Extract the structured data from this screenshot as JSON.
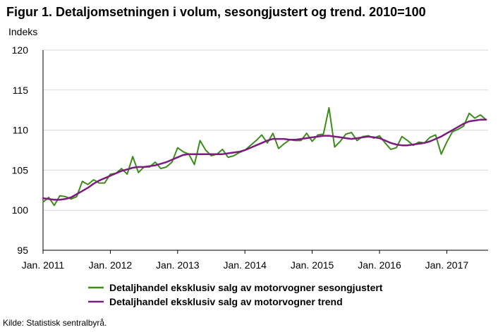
{
  "title": "Figur 1. Detaljomsetningen i volum, sesongjustert og trend. 2010=100",
  "source": "Kilde: Statistisk sentralbyrå.",
  "chart_data": {
    "type": "line",
    "title": "Figur 1. Detaljomsetningen i volum, sesongjustert og trend. 2010=100",
    "ylabel": "Indeks",
    "xlabel": "",
    "ylim": [
      95,
      120
    ],
    "yticks": [
      95,
      100,
      105,
      110,
      115,
      120
    ],
    "xticks": [
      "Jan. 2011",
      "Jan. 2012",
      "Jan. 2013",
      "Jan. 2014",
      "Jan. 2015",
      "Jan. 2016",
      "Jan. 2017"
    ],
    "grid": "horizontal",
    "legend_position": "bottom",
    "x_start": "2011-01",
    "x_frequency": "monthly",
    "series": [
      {
        "name": "Detaljhandel eksklusiv salg av motorvogner sesongjustert",
        "color": "#3c8c1c",
        "values": [
          101.0,
          101.6,
          100.6,
          101.8,
          101.7,
          101.4,
          101.7,
          103.6,
          103.2,
          103.8,
          103.4,
          103.4,
          104.5,
          104.6,
          105.2,
          104.5,
          106.7,
          104.7,
          105.4,
          105.4,
          106.0,
          105.2,
          105.4,
          106.0,
          107.8,
          107.3,
          107.0,
          105.7,
          108.7,
          107.5,
          106.8,
          107.0,
          107.6,
          106.6,
          106.8,
          107.2,
          107.5,
          108.1,
          108.7,
          109.4,
          108.4,
          109.6,
          107.7,
          108.3,
          108.8,
          108.7,
          108.7,
          109.6,
          108.6,
          109.4,
          109.5,
          112.8,
          107.9,
          108.6,
          109.5,
          109.7,
          108.7,
          109.2,
          109.3,
          109.0,
          109.3,
          108.4,
          107.6,
          107.8,
          109.2,
          108.7,
          108.1,
          108.5,
          108.4,
          109.1,
          109.4,
          107.0,
          108.5,
          109.8,
          110.1,
          110.5,
          112.1,
          111.5,
          111.9,
          111.3
        ]
      },
      {
        "name": "Detaljhandel eksklusiv salg av motorvogner trend",
        "color": "#7b1c7e",
        "values": [
          101.5,
          101.4,
          101.3,
          101.3,
          101.4,
          101.6,
          102.0,
          102.4,
          102.8,
          103.3,
          103.7,
          104.0,
          104.3,
          104.6,
          104.9,
          105.1,
          105.3,
          105.4,
          105.4,
          105.5,
          105.6,
          105.8,
          106.0,
          106.3,
          106.6,
          106.9,
          107.0,
          107.0,
          107.0,
          107.0,
          107.0,
          107.0,
          107.0,
          107.1,
          107.2,
          107.3,
          107.5,
          107.8,
          108.1,
          108.4,
          108.7,
          108.9,
          108.9,
          108.9,
          108.8,
          108.8,
          108.9,
          109.0,
          109.1,
          109.2,
          109.3,
          109.3,
          109.2,
          109.1,
          109.0,
          108.9,
          109.0,
          109.1,
          109.2,
          109.1,
          109.0,
          108.7,
          108.4,
          108.2,
          108.1,
          108.1,
          108.2,
          108.3,
          108.4,
          108.6,
          108.9,
          109.2,
          109.6,
          110.0,
          110.4,
          110.8,
          111.1,
          111.2,
          111.3,
          111.3
        ]
      }
    ]
  }
}
